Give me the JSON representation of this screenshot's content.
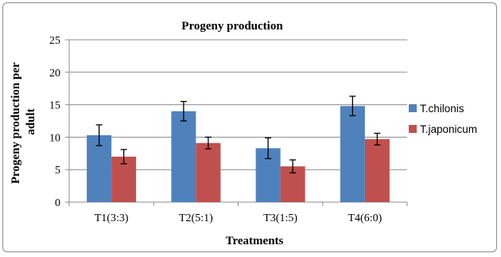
{
  "chart_data": {
    "type": "bar",
    "title": "Progeny production",
    "xlabel": "Treatments",
    "ylabel": "Progeny production per adult",
    "ylabel_lines": [
      "Progeny production per",
      "adult"
    ],
    "categories": [
      "T1(3:3)",
      "T2(5:1)",
      "T3(1:5)",
      "T4(6:0)"
    ],
    "ylim": [
      0,
      25
    ],
    "yticks": [
      0,
      5,
      10,
      15,
      20,
      25
    ],
    "grid": true,
    "legend_position": "right",
    "series": [
      {
        "name": "T.chilonis",
        "color": "#4F81BD",
        "values": [
          10.3,
          14.0,
          8.3,
          14.8
        ],
        "error": [
          1.6,
          1.5,
          1.6,
          1.5
        ]
      },
      {
        "name": "T.japonicum",
        "color": "#C0504D",
        "values": [
          7.0,
          9.1,
          5.5,
          9.7
        ],
        "error": [
          1.1,
          0.9,
          1.0,
          0.9
        ]
      }
    ]
  }
}
